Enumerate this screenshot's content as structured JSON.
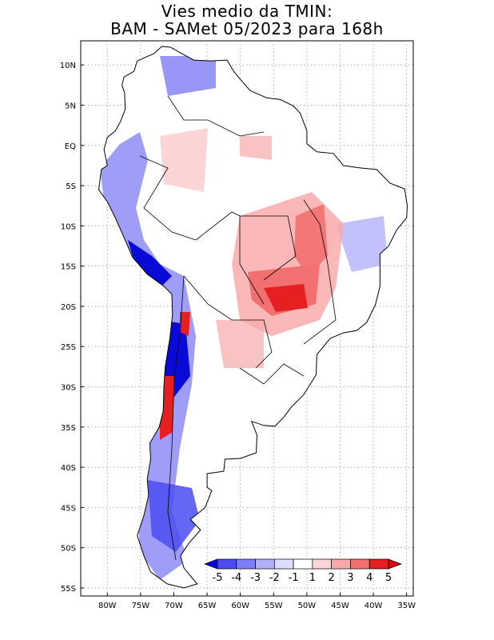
{
  "title": {
    "line1": "Vies medio da TMIN:",
    "line2": "BAM - SAMet 05/2023  para 168h"
  },
  "map": {
    "region": "South America",
    "lon_range": [
      -84,
      -34
    ],
    "lat_range": [
      -56,
      13
    ],
    "lat_ticks": [
      {
        "lat": 10,
        "label": "10N"
      },
      {
        "lat": 5,
        "label": "5N"
      },
      {
        "lat": 0,
        "label": "EQ"
      },
      {
        "lat": -5,
        "label": "5S"
      },
      {
        "lat": -10,
        "label": "10S"
      },
      {
        "lat": -15,
        "label": "15S"
      },
      {
        "lat": -20,
        "label": "20S"
      },
      {
        "lat": -25,
        "label": "25S"
      },
      {
        "lat": -30,
        "label": "30S"
      },
      {
        "lat": -35,
        "label": "35S"
      },
      {
        "lat": -40,
        "label": "40S"
      },
      {
        "lat": -45,
        "label": "45S"
      },
      {
        "lat": -50,
        "label": "50S"
      },
      {
        "lat": -55,
        "label": "55S"
      }
    ],
    "lon_ticks": [
      {
        "lon": -80,
        "label": "80W"
      },
      {
        "lon": -75,
        "label": "75W"
      },
      {
        "lon": -70,
        "label": "70W"
      },
      {
        "lon": -65,
        "label": "65W"
      },
      {
        "lon": -60,
        "label": "60W"
      },
      {
        "lon": -55,
        "label": "55W"
      },
      {
        "lon": -50,
        "label": "50W"
      },
      {
        "lon": -45,
        "label": "45W"
      },
      {
        "lon": -40,
        "label": "40W"
      },
      {
        "lon": -35,
        "label": "35W"
      }
    ]
  },
  "colorbar": {
    "labels": [
      "-5",
      "-4",
      "-3",
      "-2",
      "-1",
      "1",
      "2",
      "3",
      "4",
      "5"
    ],
    "colors": [
      "#0a0ad8",
      "#4b4bf2",
      "#7e7ef7",
      "#b1b1fa",
      "#dcdcfd",
      "#ffffff",
      "#fcd6d6",
      "#f8aaaa",
      "#f27070",
      "#e62020",
      "#d80a0a"
    ]
  }
}
